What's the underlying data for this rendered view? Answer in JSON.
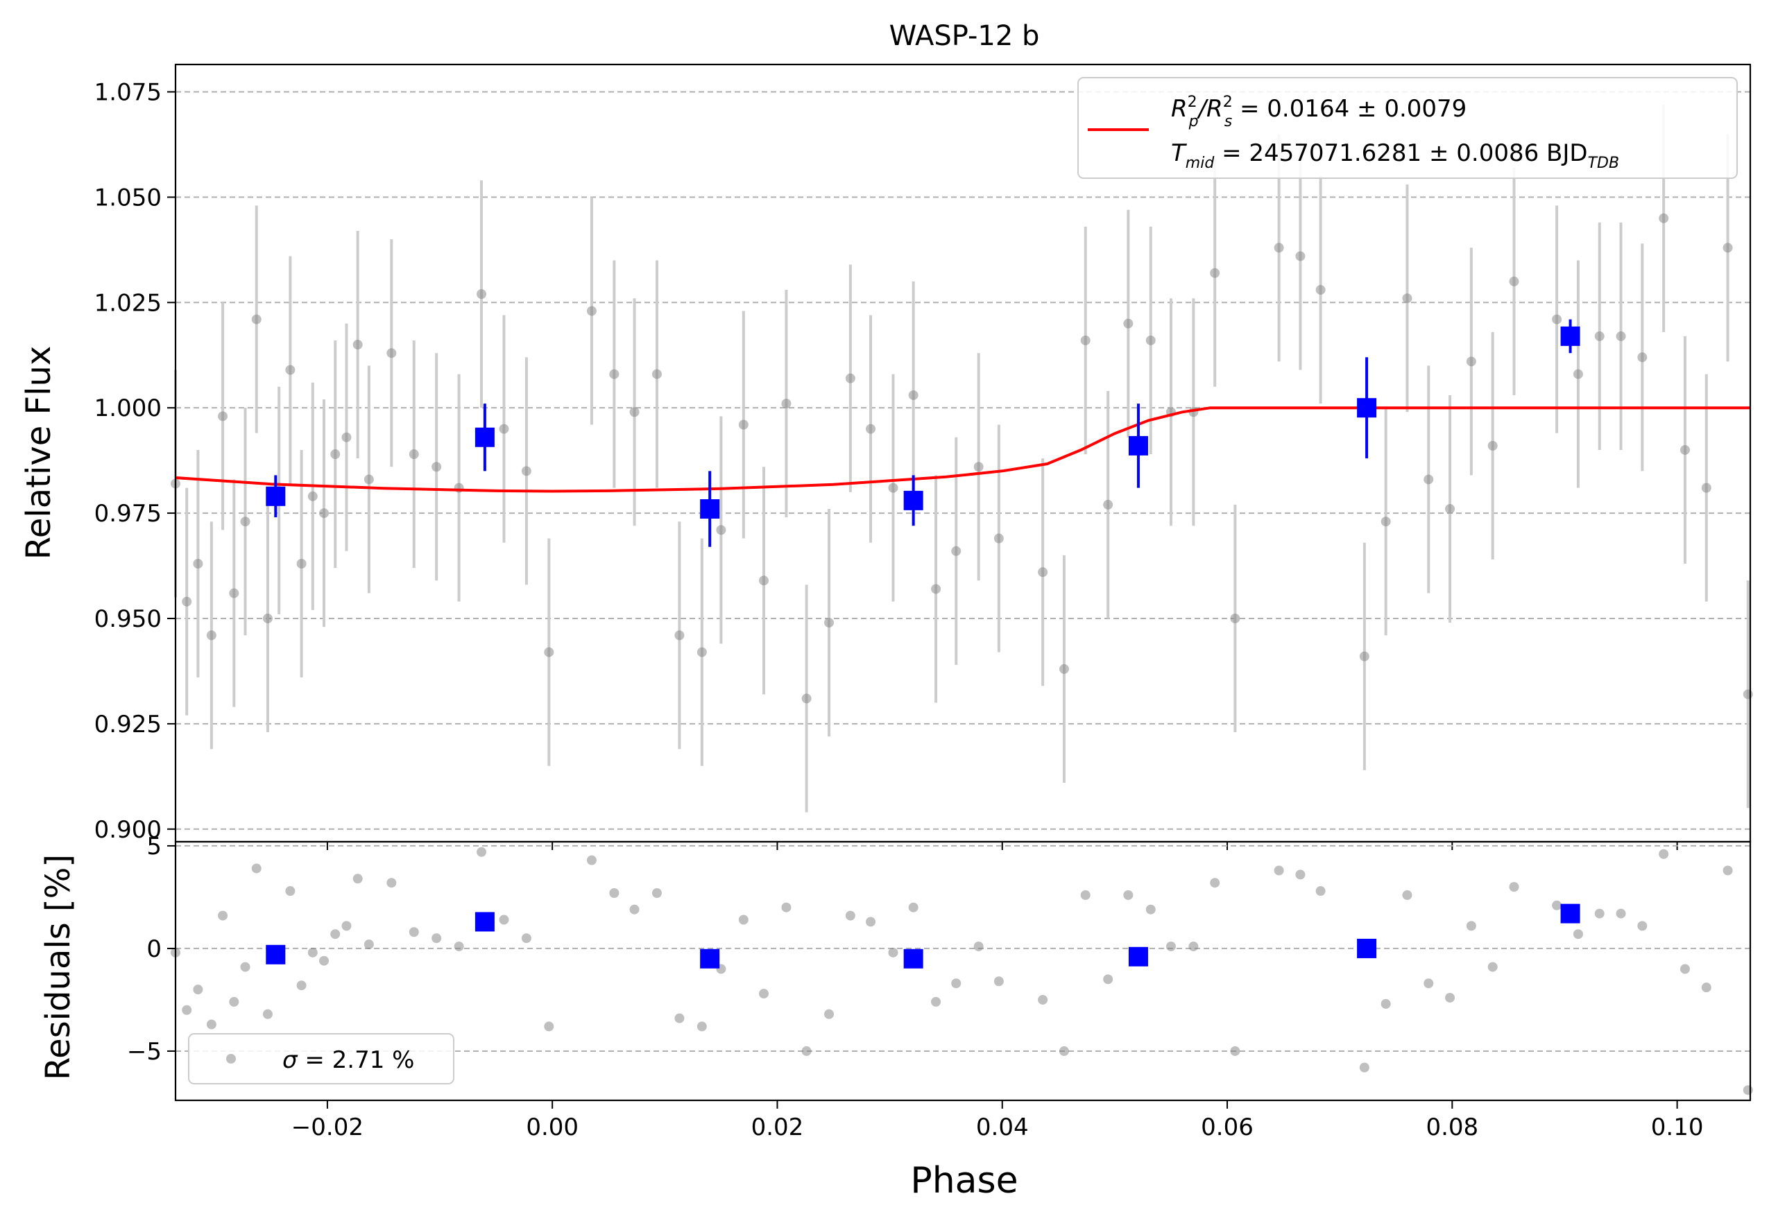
{
  "chart_data": [
    {
      "type": "scatter",
      "title": "WASP-12 b",
      "xlabel": "",
      "ylabel": "Relative Flux",
      "xlim": [
        -0.0335,
        0.1065
      ],
      "ylim": [
        0.897,
        1.0815
      ],
      "grid": "horizontal dashed",
      "yticks": [
        {
          "v": 0.9,
          "label": "0.900"
        },
        {
          "v": 0.925,
          "label": "0.925"
        },
        {
          "v": 0.95,
          "label": "0.950"
        },
        {
          "v": 0.975,
          "label": "0.975"
        },
        {
          "v": 1.0,
          "label": "1.000"
        },
        {
          "v": 1.025,
          "label": "1.025"
        },
        {
          "v": 1.05,
          "label": "1.050"
        },
        {
          "v": 1.075,
          "label": "1.075"
        }
      ],
      "legend": {
        "placement": "top-right",
        "line1": {
          "a": "R",
          "a_sup": "2",
          "a_sub": "p",
          "b": "/R",
          "b_sup": "2",
          "b_sub": "s",
          "rest": " = 0.0164 ± 0.0079"
        },
        "line2": {
          "a": "T",
          "a_sub": "mid",
          "rest": " = 2457071.6281 ± 0.0086 BJD",
          "suffix_sub": "TDB"
        }
      },
      "series": [
        {
          "kind": "raw",
          "color": "#808080",
          "err_color": "#cccccc",
          "points": [
            [
              -0.0335,
              0.982,
              0.027
            ],
            [
              -0.0325,
              0.954,
              0.027
            ],
            [
              -0.0315,
              0.963,
              0.027
            ],
            [
              -0.0303,
              0.946,
              0.027
            ],
            [
              -0.0293,
              0.998,
              0.027
            ],
            [
              -0.0283,
              0.956,
              0.027
            ],
            [
              -0.0273,
              0.973,
              0.027
            ],
            [
              -0.0263,
              1.021,
              0.027
            ],
            [
              -0.0253,
              0.95,
              0.027
            ],
            [
              -0.0243,
              0.978,
              0.027
            ],
            [
              -0.0233,
              1.009,
              0.027
            ],
            [
              -0.0223,
              0.963,
              0.027
            ],
            [
              -0.0213,
              0.979,
              0.027
            ],
            [
              -0.0203,
              0.975,
              0.027
            ],
            [
              -0.0193,
              0.989,
              0.027
            ],
            [
              -0.0183,
              0.993,
              0.027
            ],
            [
              -0.0173,
              1.015,
              0.027
            ],
            [
              -0.0163,
              0.983,
              0.027
            ],
            [
              -0.0143,
              1.013,
              0.027
            ],
            [
              -0.0123,
              0.989,
              0.027
            ],
            [
              -0.0103,
              0.986,
              0.027
            ],
            [
              -0.0083,
              0.981,
              0.027
            ],
            [
              -0.0063,
              1.027,
              0.027
            ],
            [
              -0.0043,
              0.995,
              0.027
            ],
            [
              -0.0023,
              0.985,
              0.027
            ],
            [
              -0.0003,
              0.942,
              0.027
            ],
            [
              0.0035,
              1.023,
              0.027
            ],
            [
              0.0055,
              1.008,
              0.027
            ],
            [
              0.0073,
              0.999,
              0.027
            ],
            [
              0.0093,
              1.008,
              0.027
            ],
            [
              0.0113,
              0.946,
              0.027
            ],
            [
              0.0133,
              0.942,
              0.027
            ],
            [
              0.015,
              0.971,
              0.027
            ],
            [
              0.017,
              0.996,
              0.027
            ],
            [
              0.0188,
              0.959,
              0.027
            ],
            [
              0.0208,
              1.001,
              0.027
            ],
            [
              0.0226,
              0.931,
              0.027
            ],
            [
              0.0246,
              0.949,
              0.027
            ],
            [
              0.0265,
              1.007,
              0.027
            ],
            [
              0.0283,
              0.995,
              0.027
            ],
            [
              0.0303,
              0.981,
              0.027
            ],
            [
              0.0321,
              1.003,
              0.027
            ],
            [
              0.0341,
              0.957,
              0.027
            ],
            [
              0.0359,
              0.966,
              0.027
            ],
            [
              0.0379,
              0.986,
              0.027
            ],
            [
              0.0397,
              0.969,
              0.027
            ],
            [
              0.0436,
              0.961,
              0.027
            ],
            [
              0.0455,
              0.938,
              0.027
            ],
            [
              0.0474,
              1.016,
              0.027
            ],
            [
              0.0494,
              0.977,
              0.027
            ],
            [
              0.0512,
              1.02,
              0.027
            ],
            [
              0.0532,
              1.016,
              0.027
            ],
            [
              0.055,
              0.999,
              0.027
            ],
            [
              0.057,
              0.999,
              0.027
            ],
            [
              0.0589,
              1.032,
              0.027
            ],
            [
              0.0607,
              0.95,
              0.027
            ],
            [
              0.0646,
              1.038,
              0.027
            ],
            [
              0.0665,
              1.036,
              0.027
            ],
            [
              0.0683,
              1.028,
              0.027
            ],
            [
              0.0722,
              0.941,
              0.027
            ],
            [
              0.0741,
              0.973,
              0.027
            ],
            [
              0.076,
              1.026,
              0.027
            ],
            [
              0.0779,
              0.983,
              0.027
            ],
            [
              0.0798,
              0.976,
              0.027
            ],
            [
              0.0817,
              1.011,
              0.027
            ],
            [
              0.0836,
              0.991,
              0.027
            ],
            [
              0.0855,
              1.03,
              0.027
            ],
            [
              0.0893,
              1.021,
              0.027
            ],
            [
              0.0912,
              1.008,
              0.027
            ],
            [
              0.0931,
              1.017,
              0.027
            ],
            [
              0.095,
              1.017,
              0.027
            ],
            [
              0.0969,
              1.012,
              0.027
            ],
            [
              0.0988,
              1.045,
              0.027
            ],
            [
              0.1007,
              0.99,
              0.027
            ],
            [
              0.1026,
              0.981,
              0.027
            ],
            [
              0.1045,
              1.038,
              0.027
            ],
            [
              0.1063,
              0.932,
              0.027
            ]
          ]
        },
        {
          "kind": "binned",
          "color": "#0000ff",
          "points": [
            [
              -0.0246,
              0.979,
              0.005
            ],
            [
              -0.006,
              0.993,
              0.008
            ],
            [
              0.014,
              0.976,
              0.009
            ],
            [
              0.0321,
              0.978,
              0.006
            ],
            [
              0.0521,
              0.991,
              0.01
            ],
            [
              0.0724,
              1.0,
              0.012
            ],
            [
              0.0905,
              1.017,
              0.004
            ]
          ]
        },
        {
          "kind": "model",
          "color": "#ff0000",
          "x": [
            -0.0335,
            -0.025,
            -0.015,
            -0.005,
            0.0,
            0.005,
            0.015,
            0.025,
            0.035,
            0.04,
            0.044,
            0.047,
            0.05,
            0.053,
            0.056,
            0.0585,
            0.06,
            0.07,
            0.08,
            0.09,
            0.1065
          ],
          "y": [
            0.9834,
            0.9819,
            0.9809,
            0.9803,
            0.9802,
            0.9803,
            0.9808,
            0.9818,
            0.9836,
            0.985,
            0.9867,
            0.99,
            0.9939,
            0.997,
            0.999,
            1.0,
            1.0,
            1.0,
            1.0,
            1.0,
            1.0
          ]
        }
      ]
    },
    {
      "type": "scatter",
      "title": "",
      "xlabel": "Phase",
      "ylabel": "Residuals [%]",
      "xlim": [
        -0.0335,
        0.1065
      ],
      "ylim": [
        -7.4,
        5.2
      ],
      "grid": "horizontal dashed",
      "yticks": [
        {
          "v": 5,
          "label": "5"
        },
        {
          "v": 0,
          "label": "0"
        },
        {
          "v": -5,
          "label": "−5"
        }
      ],
      "xticks": [
        {
          "v": -0.02,
          "label": "−0.02"
        },
        {
          "v": 0.0,
          "label": "0.00"
        },
        {
          "v": 0.02,
          "label": "0.02"
        },
        {
          "v": 0.04,
          "label": "0.04"
        },
        {
          "v": 0.06,
          "label": "0.06"
        },
        {
          "v": 0.08,
          "label": "0.08"
        },
        {
          "v": 0.1,
          "label": "0.10"
        }
      ],
      "legend": {
        "placement": "lower-left",
        "symbol": "σ",
        "text": " = 2.71 %"
      },
      "series": [
        {
          "kind": "raw",
          "color": "#808080",
          "points": [
            [
              -0.0335,
              -0.2
            ],
            [
              -0.0325,
              -3.0
            ],
            [
              -0.0315,
              -2.0
            ],
            [
              -0.0303,
              -3.7
            ],
            [
              -0.0293,
              1.6
            ],
            [
              -0.0283,
              -2.6
            ],
            [
              -0.0273,
              -0.9
            ],
            [
              -0.0263,
              3.9
            ],
            [
              -0.0253,
              -3.2
            ],
            [
              -0.0243,
              -0.4
            ],
            [
              -0.0233,
              2.8
            ],
            [
              -0.0223,
              -1.8
            ],
            [
              -0.0213,
              -0.2
            ],
            [
              -0.0203,
              -0.6
            ],
            [
              -0.0193,
              0.7
            ],
            [
              -0.0183,
              1.1
            ],
            [
              -0.0173,
              3.4
            ],
            [
              -0.0163,
              0.2
            ],
            [
              -0.0143,
              3.2
            ],
            [
              -0.0123,
              0.8
            ],
            [
              -0.0103,
              0.5
            ],
            [
              -0.0083,
              0.1
            ],
            [
              -0.0063,
              4.7
            ],
            [
              -0.0043,
              1.4
            ],
            [
              -0.0023,
              0.5
            ],
            [
              -0.0003,
              -3.8
            ],
            [
              0.0035,
              4.3
            ],
            [
              0.0055,
              2.7
            ],
            [
              0.0073,
              1.9
            ],
            [
              0.0093,
              2.7
            ],
            [
              0.0113,
              -3.4
            ],
            [
              0.0133,
              -3.8
            ],
            [
              0.015,
              -1.0
            ],
            [
              0.017,
              1.4
            ],
            [
              0.0188,
              -2.2
            ],
            [
              0.0208,
              2.0
            ],
            [
              0.0226,
              -5.0
            ],
            [
              0.0246,
              -3.2
            ],
            [
              0.0265,
              1.6
            ],
            [
              0.0283,
              1.3
            ],
            [
              0.0303,
              -0.2
            ],
            [
              0.0321,
              2.0
            ],
            [
              0.0341,
              -2.6
            ],
            [
              0.0359,
              -1.7
            ],
            [
              0.0379,
              0.1
            ],
            [
              0.0397,
              -1.6
            ],
            [
              0.0436,
              -2.5
            ],
            [
              0.0455,
              -5.0
            ],
            [
              0.0474,
              2.6
            ],
            [
              0.0494,
              -1.5
            ],
            [
              0.0512,
              2.6
            ],
            [
              0.0532,
              1.9
            ],
            [
              0.055,
              0.1
            ],
            [
              0.057,
              0.1
            ],
            [
              0.0589,
              3.2
            ],
            [
              0.0607,
              -5.0
            ],
            [
              0.0646,
              3.8
            ],
            [
              0.0665,
              3.6
            ],
            [
              0.0683,
              2.8
            ],
            [
              0.0722,
              -5.8
            ],
            [
              0.0741,
              -2.7
            ],
            [
              0.076,
              2.6
            ],
            [
              0.0779,
              -1.7
            ],
            [
              0.0798,
              -2.4
            ],
            [
              0.0817,
              1.1
            ],
            [
              0.0836,
              -0.9
            ],
            [
              0.0855,
              3.0
            ],
            [
              0.0893,
              2.1
            ],
            [
              0.0912,
              0.7
            ],
            [
              0.0931,
              1.7
            ],
            [
              0.095,
              1.7
            ],
            [
              0.0969,
              1.1
            ],
            [
              0.0988,
              4.6
            ],
            [
              0.1007,
              -1.0
            ],
            [
              0.1026,
              -1.9
            ],
            [
              0.1045,
              3.8
            ],
            [
              0.1063,
              -6.9
            ]
          ]
        },
        {
          "kind": "binned",
          "color": "#0000ff",
          "points": [
            [
              -0.0246,
              -0.3
            ],
            [
              -0.006,
              1.3
            ],
            [
              0.014,
              -0.5
            ],
            [
              0.0321,
              -0.5
            ],
            [
              0.0521,
              -0.4
            ],
            [
              0.0724,
              0.0
            ],
            [
              0.0905,
              1.7
            ]
          ]
        }
      ]
    }
  ]
}
